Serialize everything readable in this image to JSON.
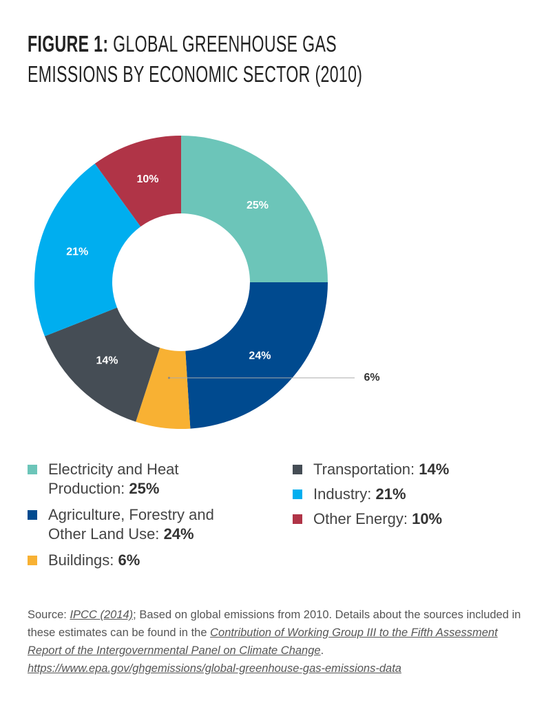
{
  "chart_data": {
    "type": "donut",
    "title_prefix": "FIGURE 1:",
    "title": "GLOBAL GREENHOUSE GAS EMISSIONS BY ECONOMIC SECTOR (2010)",
    "categories": [
      "Electricity and Heat Production:",
      "Agriculture, Forestry and Other Land Use:",
      "Buildings:",
      "Transportation:",
      "Industry:",
      "Other Energy:"
    ],
    "values": [
      25,
      24,
      6,
      14,
      21,
      10
    ],
    "value_labels": [
      "25%",
      "24%",
      "6%",
      "14%",
      "21%",
      "10%"
    ],
    "colors": [
      "#6cc5b9",
      "#004a8f",
      "#f8b133",
      "#454d55",
      "#00aeef",
      "#b03447"
    ]
  },
  "source": {
    "label": "Source:",
    "link1": "IPCC (2014)",
    "text1": "; Based on global emissions from 2010. Details about the sources included in these estimates can be found in the",
    "link2": "Contribution of Working Group III to the Fifth Assessment Report of the Intergovernmental Panel on Climate Change",
    "text2": ".",
    "url": "https://www.epa.gov/ghgemissions/global-greenhouse-gas-emissions-data"
  }
}
